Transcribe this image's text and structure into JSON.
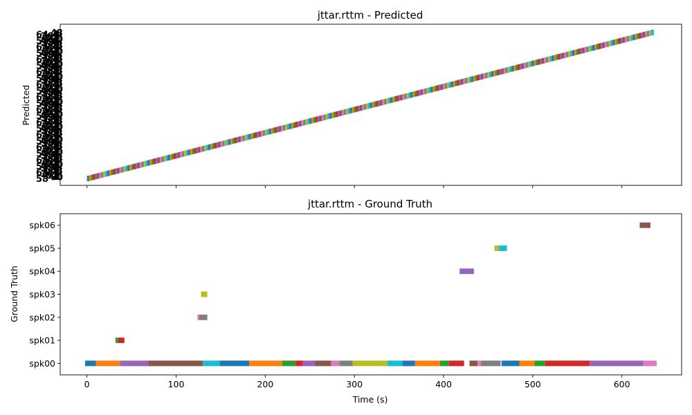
{
  "chart_data": [
    {
      "type": "timeline",
      "title": "jttar.rttm - Predicted",
      "ylabel": "Predicted",
      "xlim": [
        -30,
        667
      ],
      "note_labels": "y tick labels overlap and are illegible",
      "diagonal": {
        "x_start": 0,
        "x_end": 635,
        "segment_count": 280
      }
    },
    {
      "type": "timeline",
      "title": "jttar.rttm - Ground Truth",
      "xlabel": "Time (s)",
      "ylabel": "Ground Truth",
      "xlim": [
        -30,
        667
      ],
      "xticks": [
        0,
        100,
        200,
        300,
        400,
        500,
        600
      ],
      "speakers": [
        "spk00",
        "spk01",
        "spk02",
        "spk03",
        "spk04",
        "spk05",
        "spk06"
      ],
      "segments": [
        {
          "speaker": "spk00",
          "start": -2,
          "end": 10,
          "color": "#1f77b4"
        },
        {
          "speaker": "spk00",
          "start": 10,
          "end": 37,
          "color": "#ff7f0e"
        },
        {
          "speaker": "spk00",
          "start": 37,
          "end": 69,
          "color": "#9467bd"
        },
        {
          "speaker": "spk00",
          "start": 69,
          "end": 130,
          "color": "#8c564b"
        },
        {
          "speaker": "spk00",
          "start": 130,
          "end": 149,
          "color": "#17becf"
        },
        {
          "speaker": "spk00",
          "start": 149,
          "end": 182,
          "color": "#1f77b4"
        },
        {
          "speaker": "spk00",
          "start": 182,
          "end": 219,
          "color": "#ff7f0e"
        },
        {
          "speaker": "spk00",
          "start": 219,
          "end": 234,
          "color": "#2ca02c"
        },
        {
          "speaker": "spk00",
          "start": 234,
          "end": 242,
          "color": "#d62728"
        },
        {
          "speaker": "spk00",
          "start": 242,
          "end": 256,
          "color": "#9467bd"
        },
        {
          "speaker": "spk00",
          "start": 256,
          "end": 274,
          "color": "#8c564b"
        },
        {
          "speaker": "spk00",
          "start": 274,
          "end": 283,
          "color": "#e377c2"
        },
        {
          "speaker": "spk00",
          "start": 283,
          "end": 298,
          "color": "#7f7f7f"
        },
        {
          "speaker": "spk00",
          "start": 298,
          "end": 337,
          "color": "#bcbd22"
        },
        {
          "speaker": "spk00",
          "start": 337,
          "end": 354,
          "color": "#17becf"
        },
        {
          "speaker": "spk00",
          "start": 354,
          "end": 368,
          "color": "#1f77b4"
        },
        {
          "speaker": "spk00",
          "start": 368,
          "end": 396,
          "color": "#ff7f0e"
        },
        {
          "speaker": "spk00",
          "start": 396,
          "end": 406,
          "color": "#2ca02c"
        },
        {
          "speaker": "spk00",
          "start": 406,
          "end": 423,
          "color": "#d62728"
        },
        {
          "speaker": "spk00",
          "start": 429,
          "end": 438,
          "color": "#8c564b"
        },
        {
          "speaker": "spk00",
          "start": 438,
          "end": 442,
          "color": "#e377c2"
        },
        {
          "speaker": "spk00",
          "start": 442,
          "end": 464,
          "color": "#7f7f7f"
        },
        {
          "speaker": "spk00",
          "start": 465,
          "end": 485,
          "color": "#1f77b4"
        },
        {
          "speaker": "spk00",
          "start": 485,
          "end": 502,
          "color": "#ff7f0e"
        },
        {
          "speaker": "spk00",
          "start": 502,
          "end": 514,
          "color": "#2ca02c"
        },
        {
          "speaker": "spk00",
          "start": 514,
          "end": 564,
          "color": "#d62728"
        },
        {
          "speaker": "spk00",
          "start": 564,
          "end": 624,
          "color": "#9467bd"
        },
        {
          "speaker": "spk00",
          "start": 624,
          "end": 639,
          "color": "#e377c2"
        },
        {
          "speaker": "spk01",
          "start": 32,
          "end": 35,
          "color": "#2ca02c"
        },
        {
          "speaker": "spk01",
          "start": 35,
          "end": 42,
          "color": "#d62728"
        },
        {
          "speaker": "spk02",
          "start": 124,
          "end": 126,
          "color": "#e377c2"
        },
        {
          "speaker": "spk02",
          "start": 126,
          "end": 135,
          "color": "#7f7f7f"
        },
        {
          "speaker": "spk03",
          "start": 128,
          "end": 135,
          "color": "#bcbd22"
        },
        {
          "speaker": "spk04",
          "start": 418,
          "end": 434,
          "color": "#9467bd"
        },
        {
          "speaker": "spk05",
          "start": 457,
          "end": 462,
          "color": "#bcbd22"
        },
        {
          "speaker": "spk05",
          "start": 462,
          "end": 471,
          "color": "#17becf"
        },
        {
          "speaker": "spk06",
          "start": 620,
          "end": 632,
          "color": "#8c564b"
        }
      ]
    }
  ],
  "palette": [
    "#1f77b4",
    "#ff7f0e",
    "#2ca02c",
    "#d62728",
    "#9467bd",
    "#8c564b",
    "#e377c2",
    "#7f7f7f",
    "#bcbd22",
    "#17becf"
  ]
}
